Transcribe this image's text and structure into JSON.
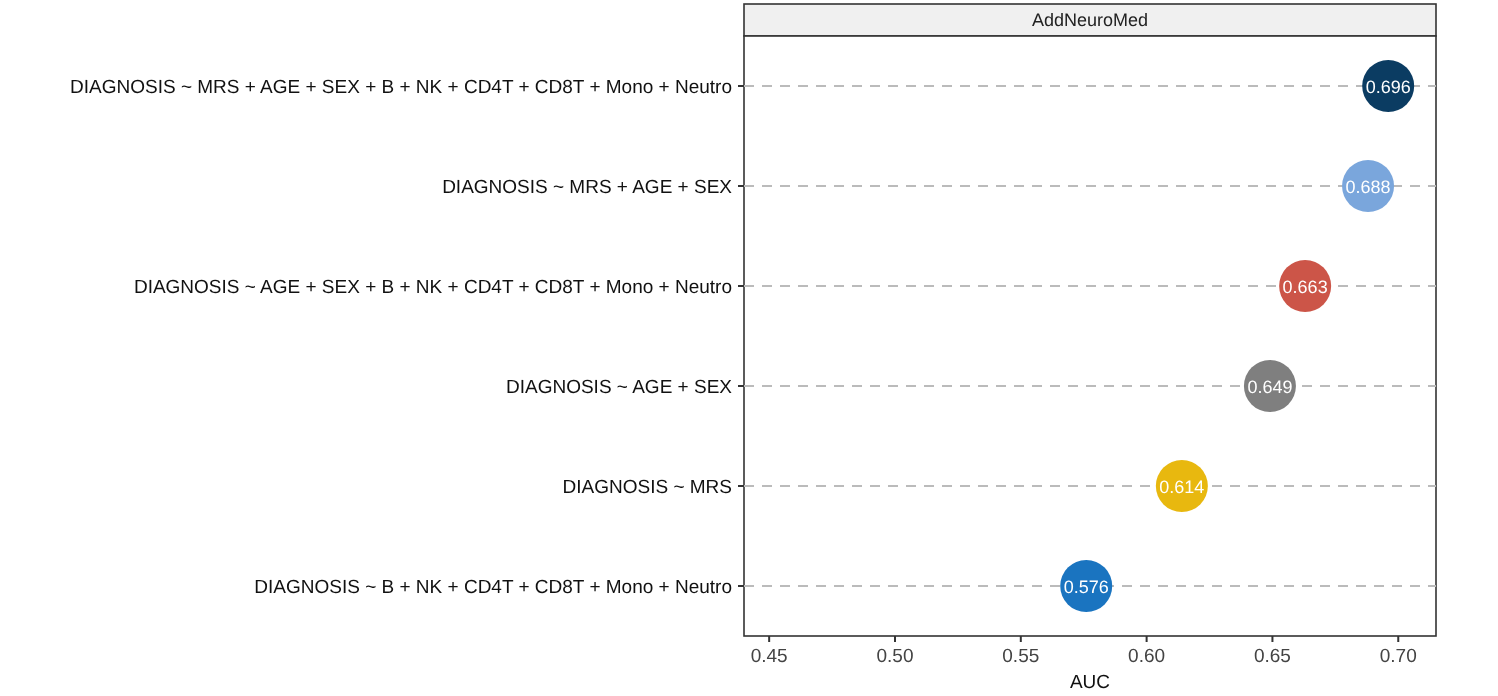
{
  "chart_data": {
    "type": "scatter",
    "title": "AddNeuroMed",
    "xlabel": "AUC",
    "orientation": "horizontal",
    "categories": [
      "DIAGNOSIS ~ MRS + AGE + SEX + B + NK + CD4T + CD8T + Mono + Neutro",
      "DIAGNOSIS ~ MRS + AGE + SEX",
      "DIAGNOSIS ~ AGE + SEX + B + NK + CD4T + CD8T + Mono + Neutro",
      "DIAGNOSIS ~ AGE + SEX",
      "DIAGNOSIS ~ MRS",
      "DIAGNOSIS ~ B + NK + CD4T + CD8T + Mono + Neutro"
    ],
    "values": [
      0.696,
      0.688,
      0.663,
      0.649,
      0.614,
      0.576
    ],
    "colors": [
      "#0b3c62",
      "#7aa6dc",
      "#cc5548",
      "#7f7f7f",
      "#e8b80f",
      "#1a74c0"
    ],
    "xlim": [
      0.44,
      0.715
    ],
    "xticks": [
      0.45,
      {
        "value": 0.5,
        "label": "0.50"
      },
      0.55,
      {
        "value": 0.6,
        "label": "0.60"
      },
      0.65,
      {
        "value": 0.7,
        "label": "0.70"
      }
    ],
    "data_labels": true,
    "grid": "y",
    "marker": "circle"
  }
}
